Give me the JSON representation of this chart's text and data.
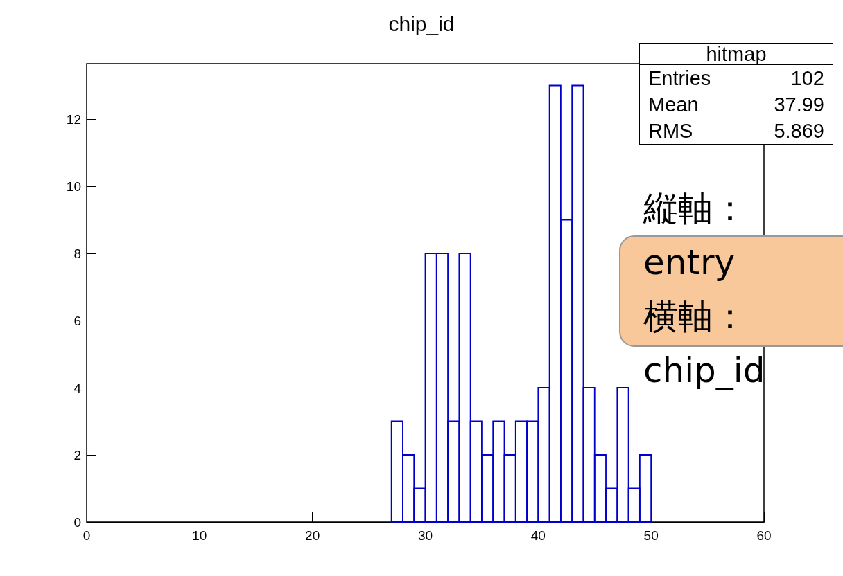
{
  "chart_data": {
    "type": "histogram",
    "title": "chip_id",
    "bins": [
      27,
      28,
      29,
      30,
      31,
      32,
      33,
      34,
      35,
      36,
      37,
      38,
      39,
      40,
      41,
      42,
      43,
      44,
      45,
      46,
      47,
      48,
      49,
      50
    ],
    "values": [
      3,
      2,
      1,
      8,
      8,
      3,
      8,
      3,
      2,
      3,
      2,
      3,
      3,
      4,
      13,
      9,
      13,
      4,
      2,
      1,
      4,
      1,
      2
    ],
    "color": "#0000cc",
    "xlim": [
      0,
      60
    ],
    "xticks": [
      0,
      10,
      20,
      30,
      40,
      50,
      60
    ],
    "ylim": [
      0,
      13.65
    ],
    "yticks": [
      0,
      2,
      4,
      6,
      8,
      10,
      12
    ],
    "grid": false,
    "annotations": [
      "hitmap",
      "Entries",
      "102",
      "Mean",
      "37.99",
      "RMS",
      "5.869",
      "縦軸：\nentry\n横軸：\nchip_id"
    ]
  }
}
